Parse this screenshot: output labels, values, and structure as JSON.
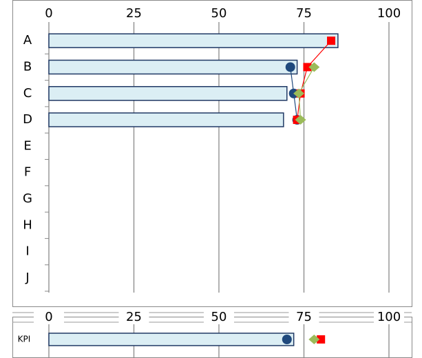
{
  "chart_data": [
    {
      "type": "bar",
      "categories": [
        "A",
        "B",
        "C",
        "D",
        "E",
        "F",
        "G",
        "H",
        "I",
        "J"
      ],
      "xlim": [
        0,
        100
      ],
      "xticks": [
        0,
        25,
        50,
        75,
        100
      ],
      "grid": true,
      "series": [
        {
          "type": "bar",
          "color": "#dbeef4",
          "values": [
            85,
            73,
            70,
            69,
            null,
            null,
            null,
            null,
            null,
            null
          ]
        },
        {
          "type": "line",
          "marker": "circle",
          "color": "#1f497d",
          "values": [
            null,
            71,
            72,
            73,
            null,
            null,
            null,
            null,
            null,
            null
          ]
        },
        {
          "type": "line",
          "marker": "square",
          "color": "#ff0000",
          "values": [
            83,
            76,
            74,
            73,
            null,
            null,
            null,
            null,
            null,
            null
          ]
        },
        {
          "type": "line",
          "marker": "diamond",
          "color": "#9bbb59",
          "values": [
            null,
            78,
            73.5,
            74,
            null,
            null,
            null,
            null,
            null,
            null
          ]
        }
      ]
    },
    {
      "type": "bar",
      "categories": [
        "KPI"
      ],
      "xlim": [
        0,
        100
      ],
      "xticks": [
        0,
        25,
        50,
        75,
        100
      ],
      "grid": true,
      "series": [
        {
          "type": "bar",
          "color": "#dbeef4",
          "values": [
            72
          ]
        },
        {
          "type": "point",
          "marker": "circle",
          "color": "#1f497d",
          "values": [
            70
          ]
        },
        {
          "type": "point",
          "marker": "square",
          "color": "#ff0000",
          "values": [
            80
          ]
        },
        {
          "type": "point",
          "marker": "diamond",
          "color": "#9bbb59",
          "values": [
            78
          ]
        }
      ]
    }
  ]
}
